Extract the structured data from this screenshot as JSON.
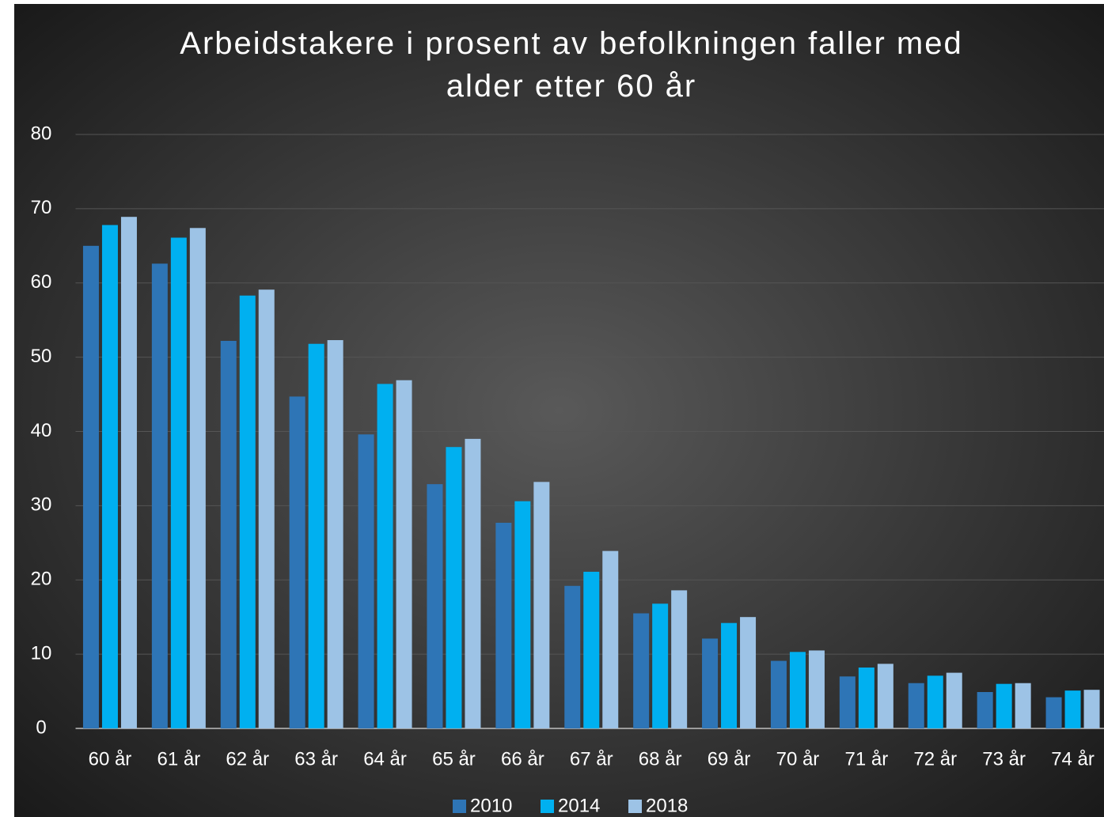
{
  "chart_data": {
    "type": "bar",
    "title": "Arbeidstakere i prosent av befolkningen faller med alder etter 60 år",
    "categories": [
      "60 år",
      "61 år",
      "62 år",
      "63 år",
      "64 år",
      "65 år",
      "66 år",
      "67 år",
      "68 år",
      "69 år",
      "70 år",
      "71 år",
      "72 år",
      "73 år",
      "74 år"
    ],
    "series": [
      {
        "name": "2010",
        "color": "#2e75b6",
        "values": [
          65,
          62.6,
          52.2,
          44.7,
          39.6,
          32.9,
          27.7,
          19.2,
          15.5,
          12.1,
          9.1,
          7.0,
          6.1,
          4.9,
          4.2
        ]
      },
      {
        "name": "2014",
        "color": "#00b0f0",
        "values": [
          67.8,
          66.1,
          58.3,
          51.8,
          46.4,
          37.9,
          30.6,
          21.1,
          16.8,
          14.2,
          10.3,
          8.2,
          7.1,
          6.0,
          5.1
        ]
      },
      {
        "name": "2018",
        "color": "#9dc3e6",
        "values": [
          68.9,
          67.4,
          59.1,
          52.3,
          46.9,
          39.0,
          33.2,
          23.9,
          18.6,
          15.0,
          10.5,
          8.7,
          7.5,
          6.1,
          5.2
        ]
      }
    ],
    "ylim": [
      0,
      80
    ],
    "yticks": [
      0,
      10,
      20,
      30,
      40,
      50,
      60,
      70,
      80
    ],
    "grid": true,
    "legend": "bottom"
  }
}
